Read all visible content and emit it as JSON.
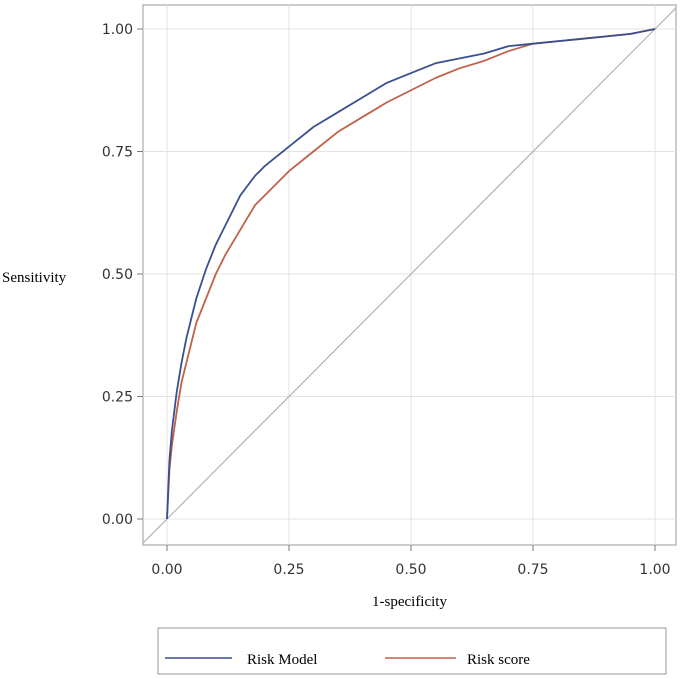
{
  "chart_data": {
    "type": "line",
    "xlabel": "1-specificity",
    "ylabel": "Sensitivity",
    "xlim": [
      0,
      1
    ],
    "ylim": [
      0,
      1
    ],
    "xticks": [
      0,
      0.25,
      0.5,
      0.75,
      1
    ],
    "yticks": [
      0,
      0.25,
      0.5,
      0.75,
      1
    ],
    "xtick_labels": [
      "0.00",
      "0.25",
      "0.50",
      "0.75",
      "1.00"
    ],
    "ytick_labels": [
      "0.00",
      "0.25",
      "0.50",
      "0.75",
      "1.00"
    ],
    "grid": true,
    "legend_position": "bottom",
    "series": [
      {
        "name": "Risk Model",
        "color": "#3a4f8f",
        "x": [
          0,
          0.005,
          0.01,
          0.02,
          0.03,
          0.04,
          0.05,
          0.06,
          0.08,
          0.1,
          0.12,
          0.15,
          0.18,
          0.2,
          0.25,
          0.3,
          0.35,
          0.4,
          0.45,
          0.5,
          0.55,
          0.6,
          0.65,
          0.7,
          0.75,
          0.8,
          0.85,
          0.9,
          0.95,
          1.0
        ],
        "y": [
          0,
          0.12,
          0.18,
          0.26,
          0.32,
          0.37,
          0.41,
          0.45,
          0.51,
          0.56,
          0.6,
          0.66,
          0.7,
          0.72,
          0.76,
          0.8,
          0.83,
          0.86,
          0.89,
          0.91,
          0.93,
          0.94,
          0.95,
          0.965,
          0.97,
          0.975,
          0.98,
          0.985,
          0.99,
          1.0
        ]
      },
      {
        "name": "Risk score",
        "color": "#c0614a",
        "x": [
          0,
          0.005,
          0.01,
          0.02,
          0.03,
          0.04,
          0.05,
          0.06,
          0.08,
          0.1,
          0.12,
          0.15,
          0.18,
          0.2,
          0.25,
          0.3,
          0.35,
          0.4,
          0.45,
          0.5,
          0.55,
          0.6,
          0.65,
          0.7,
          0.75,
          0.8,
          0.85,
          0.9,
          0.95,
          1.0
        ],
        "y": [
          0,
          0.1,
          0.15,
          0.22,
          0.28,
          0.32,
          0.36,
          0.4,
          0.45,
          0.5,
          0.54,
          0.59,
          0.64,
          0.66,
          0.71,
          0.75,
          0.79,
          0.82,
          0.85,
          0.875,
          0.9,
          0.92,
          0.935,
          0.955,
          0.97,
          0.975,
          0.98,
          0.985,
          0.99,
          1.0
        ]
      }
    ],
    "reference_line": {
      "x": [
        0,
        1
      ],
      "y": [
        0,
        1
      ],
      "color": "#b3b3b3"
    }
  }
}
